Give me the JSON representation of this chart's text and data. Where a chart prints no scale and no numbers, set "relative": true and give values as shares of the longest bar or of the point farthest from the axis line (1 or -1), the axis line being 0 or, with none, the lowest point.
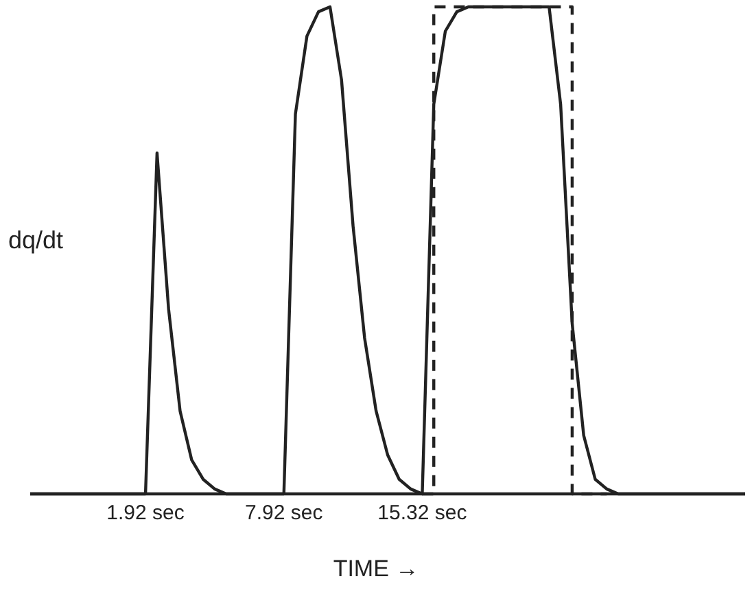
{
  "chart_data": {
    "type": "line",
    "relative": true,
    "ylabel": "dq/dt",
    "xlabel": "TIME →",
    "tick_labels": "x",
    "legend": false,
    "grid": false,
    "categories": [
      null,
      null,
      null,
      null,
      null,
      null,
      null,
      null,
      null,
      null,
      "1.92 sec",
      null,
      null,
      null,
      null,
      null,
      null,
      null,
      null,
      null,
      null,
      null,
      "7.92 sec",
      null,
      null,
      null,
      null,
      null,
      null,
      null,
      null,
      null,
      null,
      null,
      "15.32 sec",
      null,
      null,
      null,
      null,
      null,
      null,
      null,
      null,
      null,
      null,
      null,
      null,
      null,
      null,
      null,
      null,
      null,
      null,
      null,
      null,
      null,
      null,
      null,
      null,
      null,
      null,
      null,
      null
    ],
    "series": [
      {
        "type": "line",
        "color": "#222222",
        "line_style": "solid",
        "values": [
          0,
          0,
          0,
          0,
          0,
          0,
          0,
          0,
          0,
          0,
          0,
          0.7,
          0.38,
          0.17,
          0.07,
          0.03,
          0.01,
          0,
          0,
          0,
          0,
          0,
          0,
          0.78,
          0.94,
          0.99,
          1,
          0.85,
          0.55,
          0.32,
          0.17,
          0.08,
          0.03,
          0.01,
          0,
          0.8,
          0.95,
          0.99,
          1,
          1,
          1,
          1,
          1,
          1,
          1,
          1,
          0.8,
          0.35,
          0.12,
          0.03,
          0.01,
          0,
          0,
          0,
          0,
          0,
          0,
          0,
          0,
          0,
          0,
          0,
          0
        ]
      },
      {
        "type": "step",
        "color": "#222222",
        "line_style": "dashed",
        "values": [
          null,
          null,
          null,
          null,
          null,
          null,
          null,
          null,
          null,
          null,
          null,
          null,
          null,
          null,
          null,
          null,
          null,
          null,
          null,
          null,
          null,
          null,
          null,
          null,
          null,
          null,
          null,
          null,
          null,
          null,
          null,
          null,
          null,
          null,
          0,
          1,
          1,
          1,
          1,
          1,
          1,
          1,
          1,
          1,
          1,
          1,
          1,
          0,
          0,
          0,
          0,
          null,
          null,
          null,
          null,
          null,
          null,
          null,
          null,
          null,
          null,
          null,
          null
        ]
      }
    ]
  }
}
